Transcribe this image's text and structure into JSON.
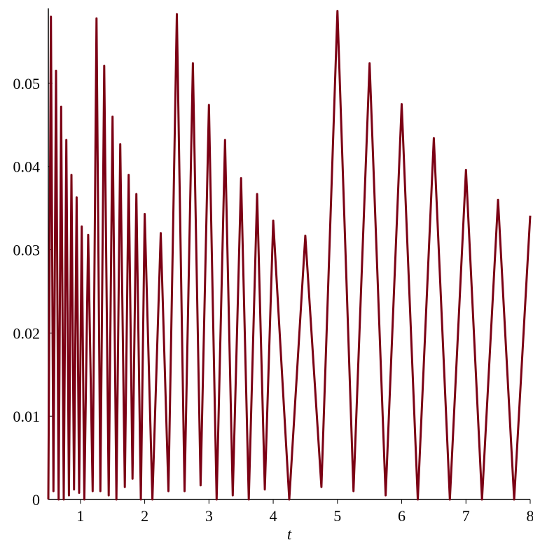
{
  "chart_data": {
    "type": "line",
    "title": "",
    "xlabel": "t",
    "ylabel": "",
    "xlim": [
      0.5,
      8
    ],
    "ylim": [
      0,
      0.059
    ],
    "x_ticks": [
      1,
      2,
      3,
      4,
      5,
      6,
      7,
      8
    ],
    "x_tick_labels": [
      "1",
      "2",
      "3",
      "4",
      "5",
      "6",
      "7",
      "8"
    ],
    "y_ticks": [
      0,
      0.01,
      0.02,
      0.03,
      0.04,
      0.05
    ],
    "y_tick_labels": [
      "0",
      "0.01",
      "0.02",
      "0.03",
      "0.04",
      "0.05"
    ],
    "grid": false,
    "legend": "none",
    "series": [
      {
        "color": "#7b0014",
        "x": [
          0.5,
          0.54,
          0.58,
          0.62,
          0.66,
          0.7,
          0.74,
          0.78,
          0.82,
          0.86,
          0.9,
          0.94,
          0.98,
          1.02,
          1.06,
          1.12,
          1.19,
          1.25,
          1.31,
          1.37,
          1.44,
          1.5,
          1.56,
          1.62,
          1.69,
          1.75,
          1.81,
          1.87,
          1.94,
          2.0,
          2.12,
          2.25,
          2.37,
          2.5,
          2.62,
          2.75,
          2.87,
          3.0,
          3.12,
          3.25,
          3.37,
          3.5,
          3.62,
          3.75,
          3.87,
          4.0,
          4.25,
          4.5,
          4.75,
          5.0,
          5.25,
          5.5,
          5.75,
          6.0,
          6.25,
          6.5,
          6.75,
          7.0,
          7.25,
          7.5,
          7.75,
          8.0
        ],
        "y": [
          0.0,
          0.058,
          0.001,
          0.0515,
          0.0,
          0.0472,
          0.0,
          0.0432,
          0.0005,
          0.039,
          0.0012,
          0.0363,
          0.0008,
          0.0328,
          0.0,
          0.0318,
          0.001,
          0.0578,
          0.001,
          0.0521,
          0.0005,
          0.046,
          0.0,
          0.0427,
          0.0015,
          0.039,
          0.0025,
          0.0367,
          0.0,
          0.0343,
          0.0,
          0.032,
          0.001,
          0.0583,
          0.001,
          0.0524,
          0.0017,
          0.0474,
          0.0,
          0.0432,
          0.0005,
          0.0386,
          0.0,
          0.0367,
          0.0012,
          0.0335,
          0.0,
          0.0317,
          0.0015,
          0.0587,
          0.001,
          0.0524,
          0.0005,
          0.0475,
          0.0,
          0.0434,
          0.0,
          0.0396,
          0.0,
          0.036,
          0.0,
          0.0341
        ]
      }
    ]
  }
}
